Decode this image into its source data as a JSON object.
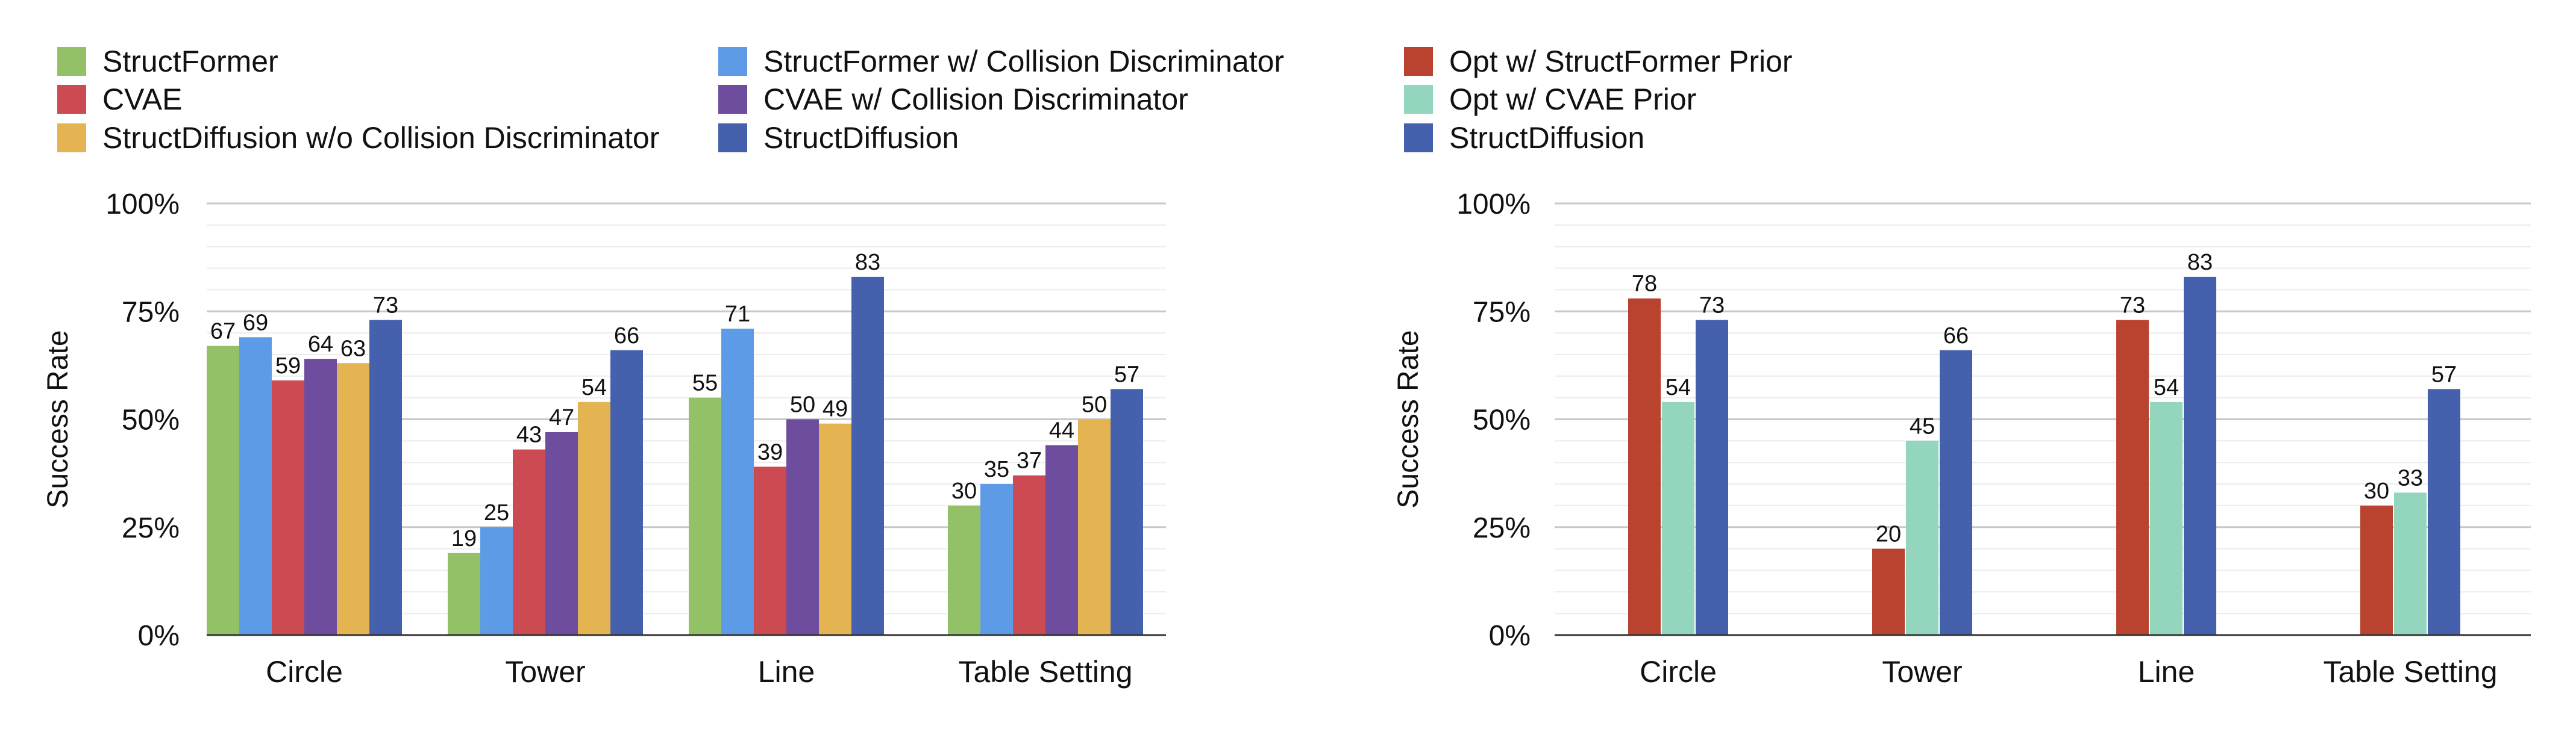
{
  "chart_data": [
    {
      "type": "bar",
      "ylabel": "Success Rate",
      "ylim": [
        0,
        100
      ],
      "yticks": [
        "0%",
        "25%",
        "50%",
        "75%",
        "100%"
      ],
      "grid": true,
      "legend_placement": "top",
      "categories": [
        "Circle",
        "Tower",
        "Line",
        "Table Setting"
      ],
      "series": [
        {
          "name": "StructFormer",
          "color": "#93c168",
          "values": [
            67,
            19,
            55,
            30
          ]
        },
        {
          "name": "StructFormer w/ Collision Discriminator",
          "color": "#5d9be6",
          "values": [
            69,
            25,
            71,
            35
          ]
        },
        {
          "name": "CVAE",
          "color": "#cc4a51",
          "values": [
            59,
            43,
            39,
            37
          ]
        },
        {
          "name": "CVAE w/ Collision Discriminator",
          "color": "#6e4c9e",
          "values": [
            64,
            47,
            50,
            44
          ]
        },
        {
          "name": "StructDiffusion w/o Collision Discriminator",
          "color": "#e3b451",
          "values": [
            63,
            54,
            49,
            50
          ]
        },
        {
          "name": "StructDiffusion",
          "color": "#4561ad",
          "values": [
            73,
            66,
            83,
            57
          ]
        }
      ]
    },
    {
      "type": "bar",
      "ylabel": "Success Rate",
      "ylim": [
        0,
        100
      ],
      "yticks": [
        "0%",
        "25%",
        "50%",
        "75%",
        "100%"
      ],
      "grid": true,
      "legend_placement": "top",
      "categories": [
        "Circle",
        "Tower",
        "Line",
        "Table Setting"
      ],
      "series": [
        {
          "name": "Opt w/ StructFormer Prior",
          "color": "#b9432f",
          "values": [
            78,
            20,
            73,
            30
          ]
        },
        {
          "name": "Opt w/ CVAE Prior",
          "color": "#93d5bd",
          "values": [
            54,
            45,
            54,
            33
          ]
        },
        {
          "name": "StructDiffusion",
          "color": "#4561ad",
          "values": [
            73,
            66,
            83,
            57
          ]
        }
      ]
    }
  ]
}
